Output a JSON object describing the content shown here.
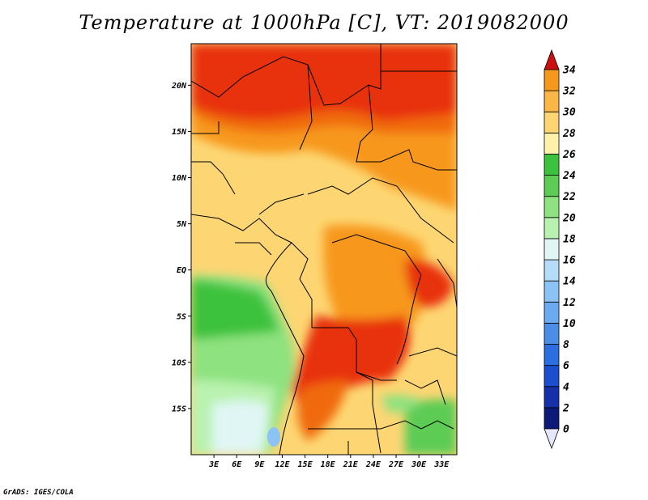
{
  "title": "Temperature at 1000hPa [C], VT: 2019082000",
  "credit": "GrADS: IGES/COLA",
  "map": {
    "lon_labels": [
      "3E",
      "6E",
      "9E",
      "12E",
      "15E",
      "18E",
      "21E",
      "24E",
      "27E",
      "30E",
      "33E"
    ],
    "lat_labels": [
      "20N",
      "15N",
      "10N",
      "5N",
      "EQ",
      "5S",
      "10S",
      "15S"
    ],
    "lon_range": [
      0,
      35
    ],
    "lat_range": [
      -20,
      24.5
    ]
  },
  "colorbar": {
    "levels": [
      "0",
      "2",
      "4",
      "6",
      "8",
      "10",
      "12",
      "14",
      "16",
      "18",
      "20",
      "22",
      "24",
      "26",
      "28",
      "30",
      "32",
      "34"
    ],
    "colors": [
      "#0b1a78",
      "#1530a8",
      "#1a4fcf",
      "#2a6ee0",
      "#4a8ee8",
      "#6aaaf0",
      "#8cc3f5",
      "#b5dcf8",
      "#dff6f4",
      "#b9f2b0",
      "#8ee27f",
      "#5ccc55",
      "#3cc23c",
      "#fff2a8",
      "#fdd673",
      "#fbb648",
      "#f7981e",
      "#f06a10",
      "#e8300a",
      "#cc1010",
      "#e6e6ff"
    ]
  }
}
